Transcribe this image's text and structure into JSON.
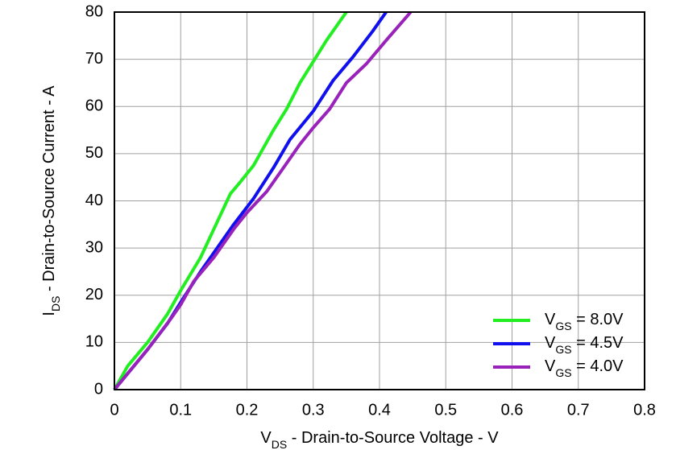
{
  "chart_data": {
    "type": "line",
    "xlabel": {
      "main": "V",
      "sub": "DS",
      "rest": " - Drain-to-Source Voltage - V"
    },
    "ylabel": {
      "main": "I",
      "sub": "DS",
      "rest": " - Drain-to-Source Current - A"
    },
    "xlim": [
      0,
      0.8
    ],
    "xticks": [
      0,
      0.1,
      0.2,
      0.3,
      0.4,
      0.5,
      0.6,
      0.7,
      0.8
    ],
    "ylim": [
      0,
      80
    ],
    "yticks": [
      0,
      10,
      20,
      30,
      40,
      50,
      60,
      70,
      80
    ],
    "grid": true,
    "legend": "lower-right",
    "series": [
      {
        "name": {
          "main": "V",
          "sub": "GS",
          "rest": " = 8.0V"
        },
        "color": "#22ee22",
        "x": [
          0,
          0.02,
          0.05,
          0.08,
          0.1,
          0.13,
          0.15,
          0.175,
          0.19,
          0.21,
          0.24,
          0.26,
          0.28,
          0.3,
          0.32,
          0.35
        ],
        "values": [
          0,
          5,
          10,
          16,
          21,
          28,
          34,
          41.5,
          44,
          47.5,
          55,
          59.5,
          65,
          69.5,
          74,
          80
        ]
      },
      {
        "name": {
          "main": "V",
          "sub": "GS",
          "rest": " = 4.5V"
        },
        "color": "#1010ee",
        "x": [
          0,
          0.05,
          0.08,
          0.1,
          0.13,
          0.16,
          0.18,
          0.21,
          0.24,
          0.265,
          0.3,
          0.33,
          0.36,
          0.39,
          0.41
        ],
        "values": [
          0,
          8.5,
          14,
          18.5,
          25,
          31,
          35,
          40.5,
          47,
          53,
          59,
          65.5,
          70.5,
          76,
          80
        ]
      },
      {
        "name": {
          "main": "V",
          "sub": "GS",
          "rest": " = 4.0V"
        },
        "color": "#9922bb",
        "x": [
          0,
          0.05,
          0.085,
          0.1,
          0.12,
          0.15,
          0.18,
          0.2,
          0.23,
          0.255,
          0.28,
          0.3,
          0.325,
          0.35,
          0.38,
          0.41,
          0.447
        ],
        "values": [
          0,
          8.5,
          15,
          18,
          23,
          28,
          34,
          37.5,
          42,
          47,
          52,
          55.5,
          59.5,
          65,
          69,
          74,
          80
        ]
      }
    ]
  }
}
